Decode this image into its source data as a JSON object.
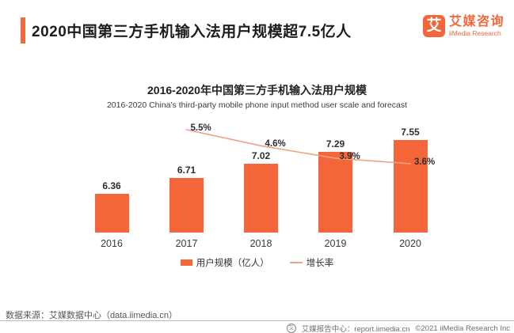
{
  "header": {
    "title": "2020中国第三方手机输入法用户规模超7.5亿人",
    "logo": {
      "glyph": "艾",
      "brand_cn": "艾媒咨询",
      "brand_en": "iiMedia Research"
    }
  },
  "chart": {
    "title": "2016-2020年中国第三方手机输入法用户规模",
    "subtitle": "2016-2020 China's third-party mobile phone input method user scale and forecast"
  },
  "chart_data": {
    "type": "bar",
    "title": "2016-2020年中国第三方手机输入法用户规模",
    "categories": [
      "2016",
      "2017",
      "2018",
      "2019",
      "2020"
    ],
    "series": [
      {
        "name": "用户规模（亿人）",
        "type": "bar",
        "color": "#f4663a",
        "values": [
          6.36,
          6.71,
          7.02,
          7.29,
          7.55
        ],
        "labels": [
          "6.36",
          "6.71",
          "7.02",
          "7.29",
          "7.55"
        ]
      },
      {
        "name": "增长率",
        "type": "line",
        "color": "#f1a081",
        "values": [
          null,
          5.5,
          4.6,
          3.9,
          3.6
        ],
        "labels": [
          null,
          "5.5%",
          "4.6%",
          "3.9%",
          "3.6%"
        ]
      }
    ],
    "bar_axis_min": 5.5,
    "grid": false,
    "legend_position": "bottom",
    "xlabel": "",
    "ylabel": ""
  },
  "colors": {
    "accent": "#f4663a",
    "line": "#f1a081"
  },
  "source": {
    "label": "数据来源：艾媒数据中心（data.iimedia.cn）"
  },
  "footer": {
    "icon_glyph": "艾",
    "report_center": "艾媒报告中心：report.iimedia.cn",
    "copyright": "©2021  iiMedia Research Inc"
  }
}
